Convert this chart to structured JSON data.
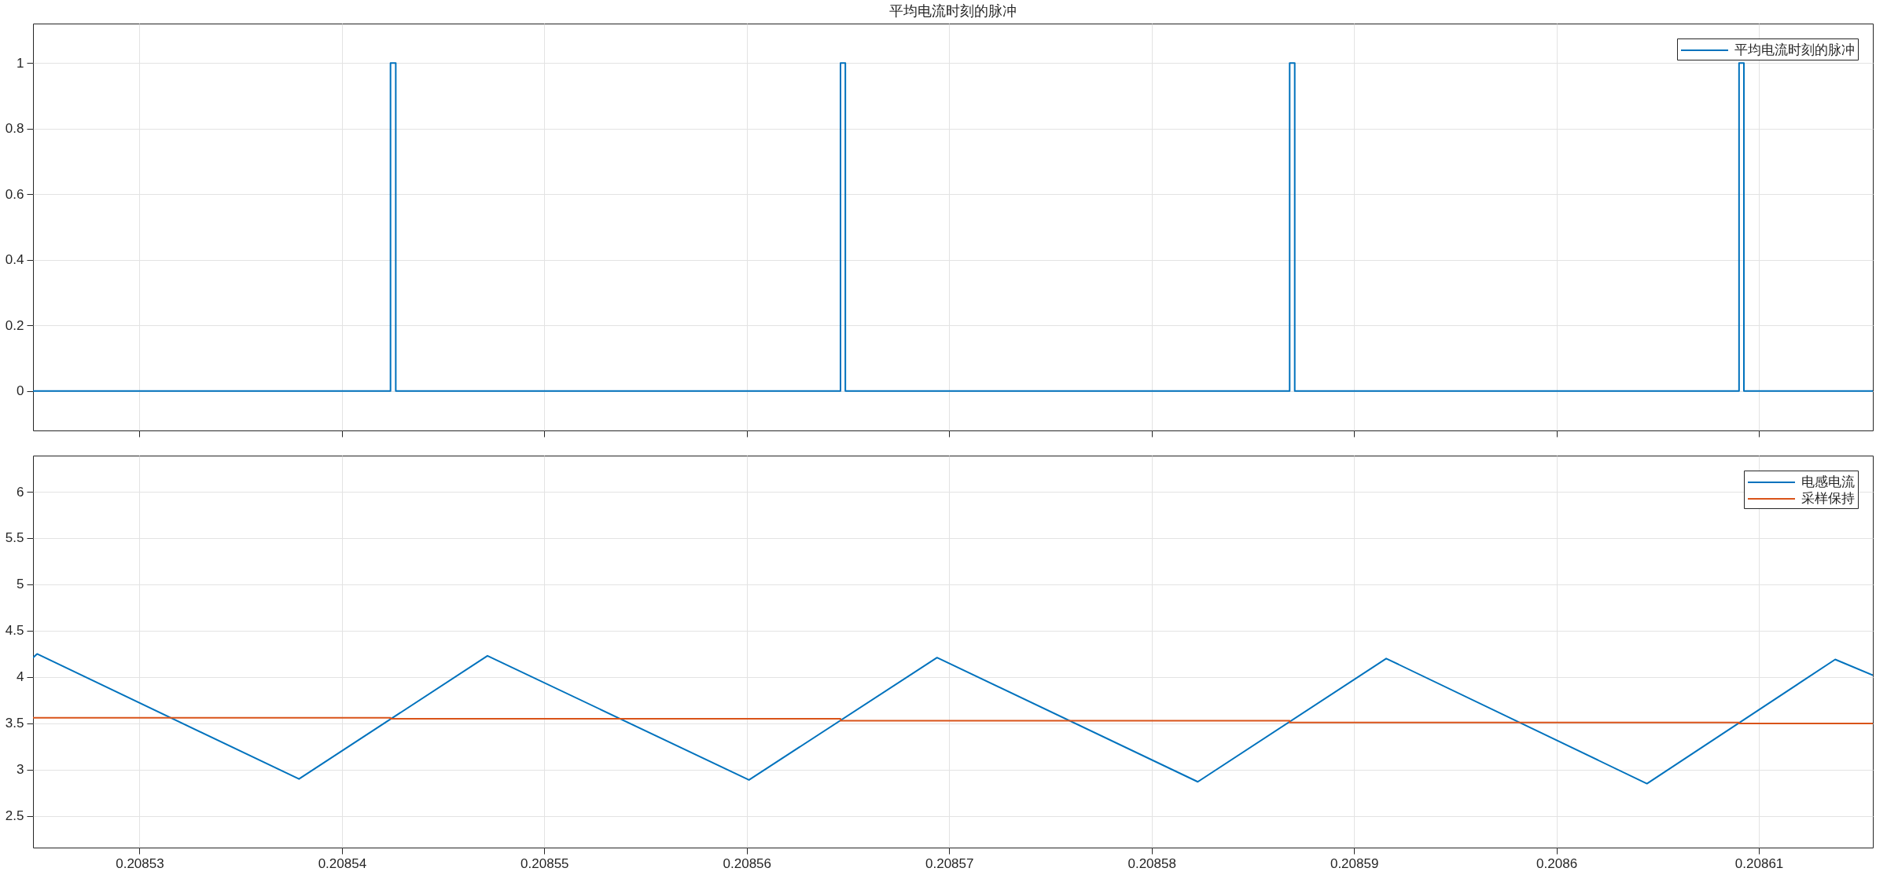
{
  "chart_data": [
    {
      "type": "step",
      "title": "平均电流时刻的脉冲",
      "x": [
        0.20852474,
        0.2085424,
        0.20854266,
        0.20856463,
        0.20856487,
        0.20858682,
        0.20858707,
        0.20860902,
        0.20860926,
        0.20861563
      ],
      "series": [
        {
          "name": "平均电流时刻的脉冲",
          "color": "#0072bd",
          "values": [
            0,
            1,
            0,
            1,
            0,
            1,
            0,
            1,
            0,
            0
          ]
        }
      ],
      "xlim": [
        0.20852474,
        0.20861563
      ],
      "xticks": [
        0.20853,
        0.20854,
        0.20855,
        0.20856,
        0.20857,
        0.20858,
        0.20859,
        0.2086,
        0.20861
      ],
      "ylim": [
        -0.12,
        1.12
      ],
      "yticks": [
        0,
        0.2,
        0.4,
        0.6,
        0.8,
        1
      ],
      "grid": true,
      "legend": "top right",
      "tick_labels": "y"
    },
    {
      "type": "line",
      "series": [
        {
          "name": "电感电流",
          "color": "#0072bd",
          "x": [
            0.20852474,
            0.20852494,
            0.20853788,
            0.20854719,
            0.20856011,
            0.2085694,
            0.20858228,
            0.20859159,
            0.20860447,
            0.20861377,
            0.20861563
          ],
          "values": [
            4.21,
            4.25,
            2.9,
            4.23,
            2.89,
            4.21,
            2.87,
            4.2,
            2.85,
            4.19,
            4.02
          ]
        },
        {
          "name": "采样保持",
          "color": "#d95319",
          "type": "step",
          "x": [
            0.20852474,
            0.2085424,
            0.20856463,
            0.20858682,
            0.20860902,
            0.20861563
          ],
          "values": [
            3.56,
            3.55,
            3.53,
            3.51,
            3.5,
            3.5
          ]
        }
      ],
      "xlim": [
        0.20852474,
        0.20861563
      ],
      "xticks": [
        0.20853,
        0.20854,
        0.20855,
        0.20856,
        0.20857,
        0.20858,
        0.20859,
        0.2086,
        0.20861
      ],
      "ylim": [
        2.16,
        6.39
      ],
      "yticks": [
        2.5,
        3,
        3.5,
        4,
        4.5,
        5,
        5.5,
        6
      ],
      "grid": true,
      "legend": "top right"
    }
  ]
}
